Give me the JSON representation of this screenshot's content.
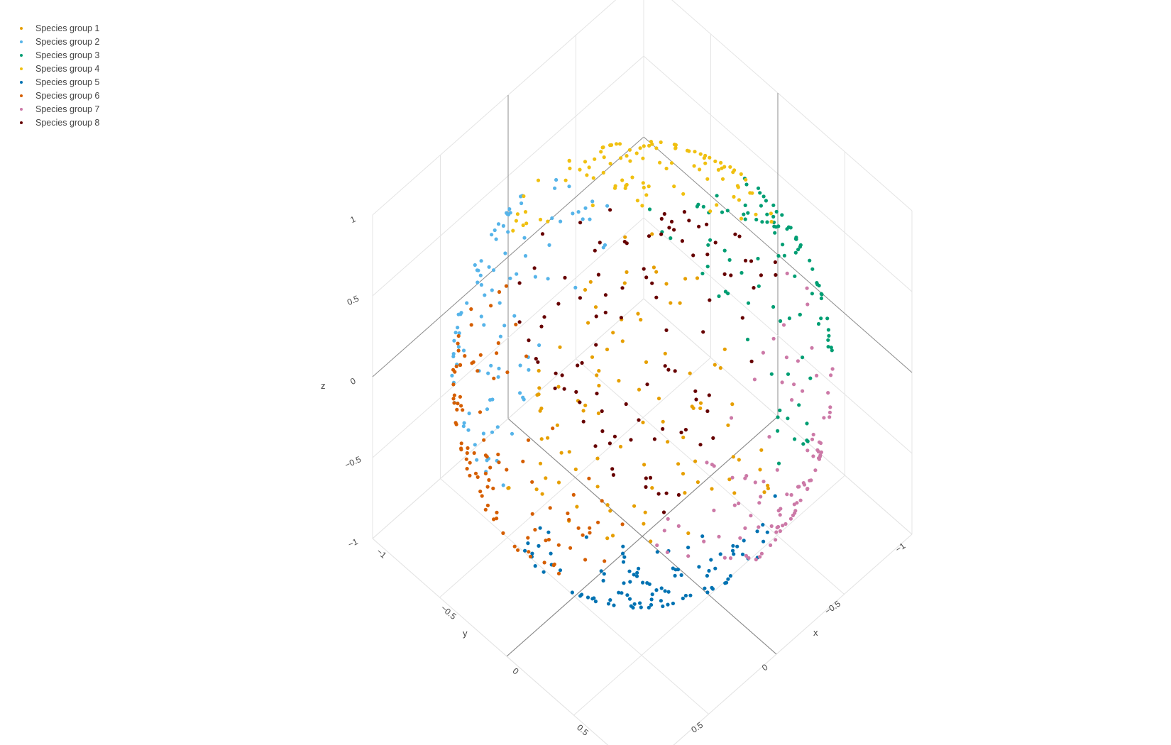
{
  "chart_data": {
    "type": "scatter3d",
    "axes": {
      "x": {
        "label": "x",
        "range": [
          -1,
          1
        ],
        "ticks": [
          -1,
          -0.5,
          0,
          0.5
        ],
        "tick_labels": [
          "−1",
          "−0.5",
          "0",
          "0.5"
        ]
      },
      "y": {
        "label": "y",
        "range": [
          -1,
          1
        ],
        "ticks": [
          -1,
          -0.5,
          0,
          0.5
        ],
        "tick_labels": [
          "−1",
          "−0.5",
          "0",
          "0.5"
        ]
      },
      "z": {
        "label": "z",
        "range": [
          -1,
          1
        ],
        "ticks": [
          -1,
          -0.5,
          0,
          0.5,
          1
        ],
        "tick_labels": [
          "−1",
          "−0.5",
          "0",
          "0.5",
          "1"
        ]
      }
    },
    "grid": true,
    "legend_position": "top-left",
    "shape": "points distributed on the surface of a unit sphere, grouped by octant",
    "series": [
      {
        "name": "Species group 1",
        "color": "#E69F00",
        "octant": [
          1,
          1,
          1
        ],
        "count": 100
      },
      {
        "name": "Species group 2",
        "color": "#56B4E9",
        "octant": [
          -1,
          1,
          1
        ],
        "count": 100
      },
      {
        "name": "Species group 3",
        "color": "#009E73",
        "octant": [
          1,
          -1,
          1
        ],
        "count": 100
      },
      {
        "name": "Species group 4",
        "color": "#F0C010",
        "octant": [
          -1,
          -1,
          1
        ],
        "count": 100
      },
      {
        "name": "Species group 5",
        "color": "#0072B2",
        "octant": [
          1,
          1,
          -1
        ],
        "count": 100
      },
      {
        "name": "Species group 6",
        "color": "#D55E00",
        "octant": [
          -1,
          1,
          -1
        ],
        "count": 100
      },
      {
        "name": "Species group 7",
        "color": "#CC79A7",
        "octant": [
          1,
          -1,
          -1
        ],
        "count": 100
      },
      {
        "name": "Species group 8",
        "color": "#660000",
        "octant": [
          -1,
          -1,
          -1
        ],
        "count": 100
      }
    ]
  }
}
